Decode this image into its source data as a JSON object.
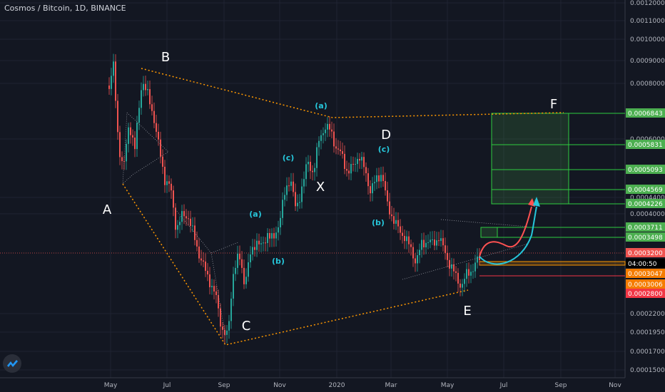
{
  "header": {
    "symbol": "Cosmos / Bitcoin, 1D, BINANCE"
  },
  "chart_data": {
    "type": "candlestick",
    "x_ticks": [
      "May",
      "Jul",
      "Sep",
      "Nov",
      "2020",
      "Mar",
      "May",
      "Jul",
      "Sep",
      "Nov"
    ],
    "y_ticks": [
      "0.0012000",
      "0.0011000",
      "0.0010000",
      "0.0009000",
      "0.0008000",
      "0.0006000",
      "0.0004400",
      "0.0004000",
      "0.0002200",
      "0.0001950",
      "0.0001700",
      "0.0001500"
    ],
    "price_labels": [
      {
        "text": "0.0006843",
        "color": "#4caf50"
      },
      {
        "text": "0.0005831",
        "color": "#4caf50"
      },
      {
        "text": "0.0005093",
        "color": "#4caf50"
      },
      {
        "text": "0.0004569",
        "color": "#4caf50"
      },
      {
        "text": "0.0004226",
        "color": "#4caf50"
      },
      {
        "text": "0.0003711",
        "color": "#4caf50"
      },
      {
        "text": "0.0003498",
        "color": "#4caf50"
      },
      {
        "text": "0.0003200",
        "color": "#ef5350"
      },
      {
        "text": "04:00:50",
        "color": "#000000"
      },
      {
        "text": "0.0003047",
        "color": "#f57c00"
      },
      {
        "text": "0.0003006",
        "color": "#f57c00"
      },
      {
        "text": "0.0002800",
        "color": "#f23645"
      }
    ],
    "wave_labels_major": [
      "A",
      "B",
      "C",
      "X",
      "D",
      "E",
      "F"
    ],
    "wave_labels_minor": [
      "(a)",
      "(b)",
      "(c)",
      "(a)",
      "(b)",
      "(c)"
    ]
  }
}
